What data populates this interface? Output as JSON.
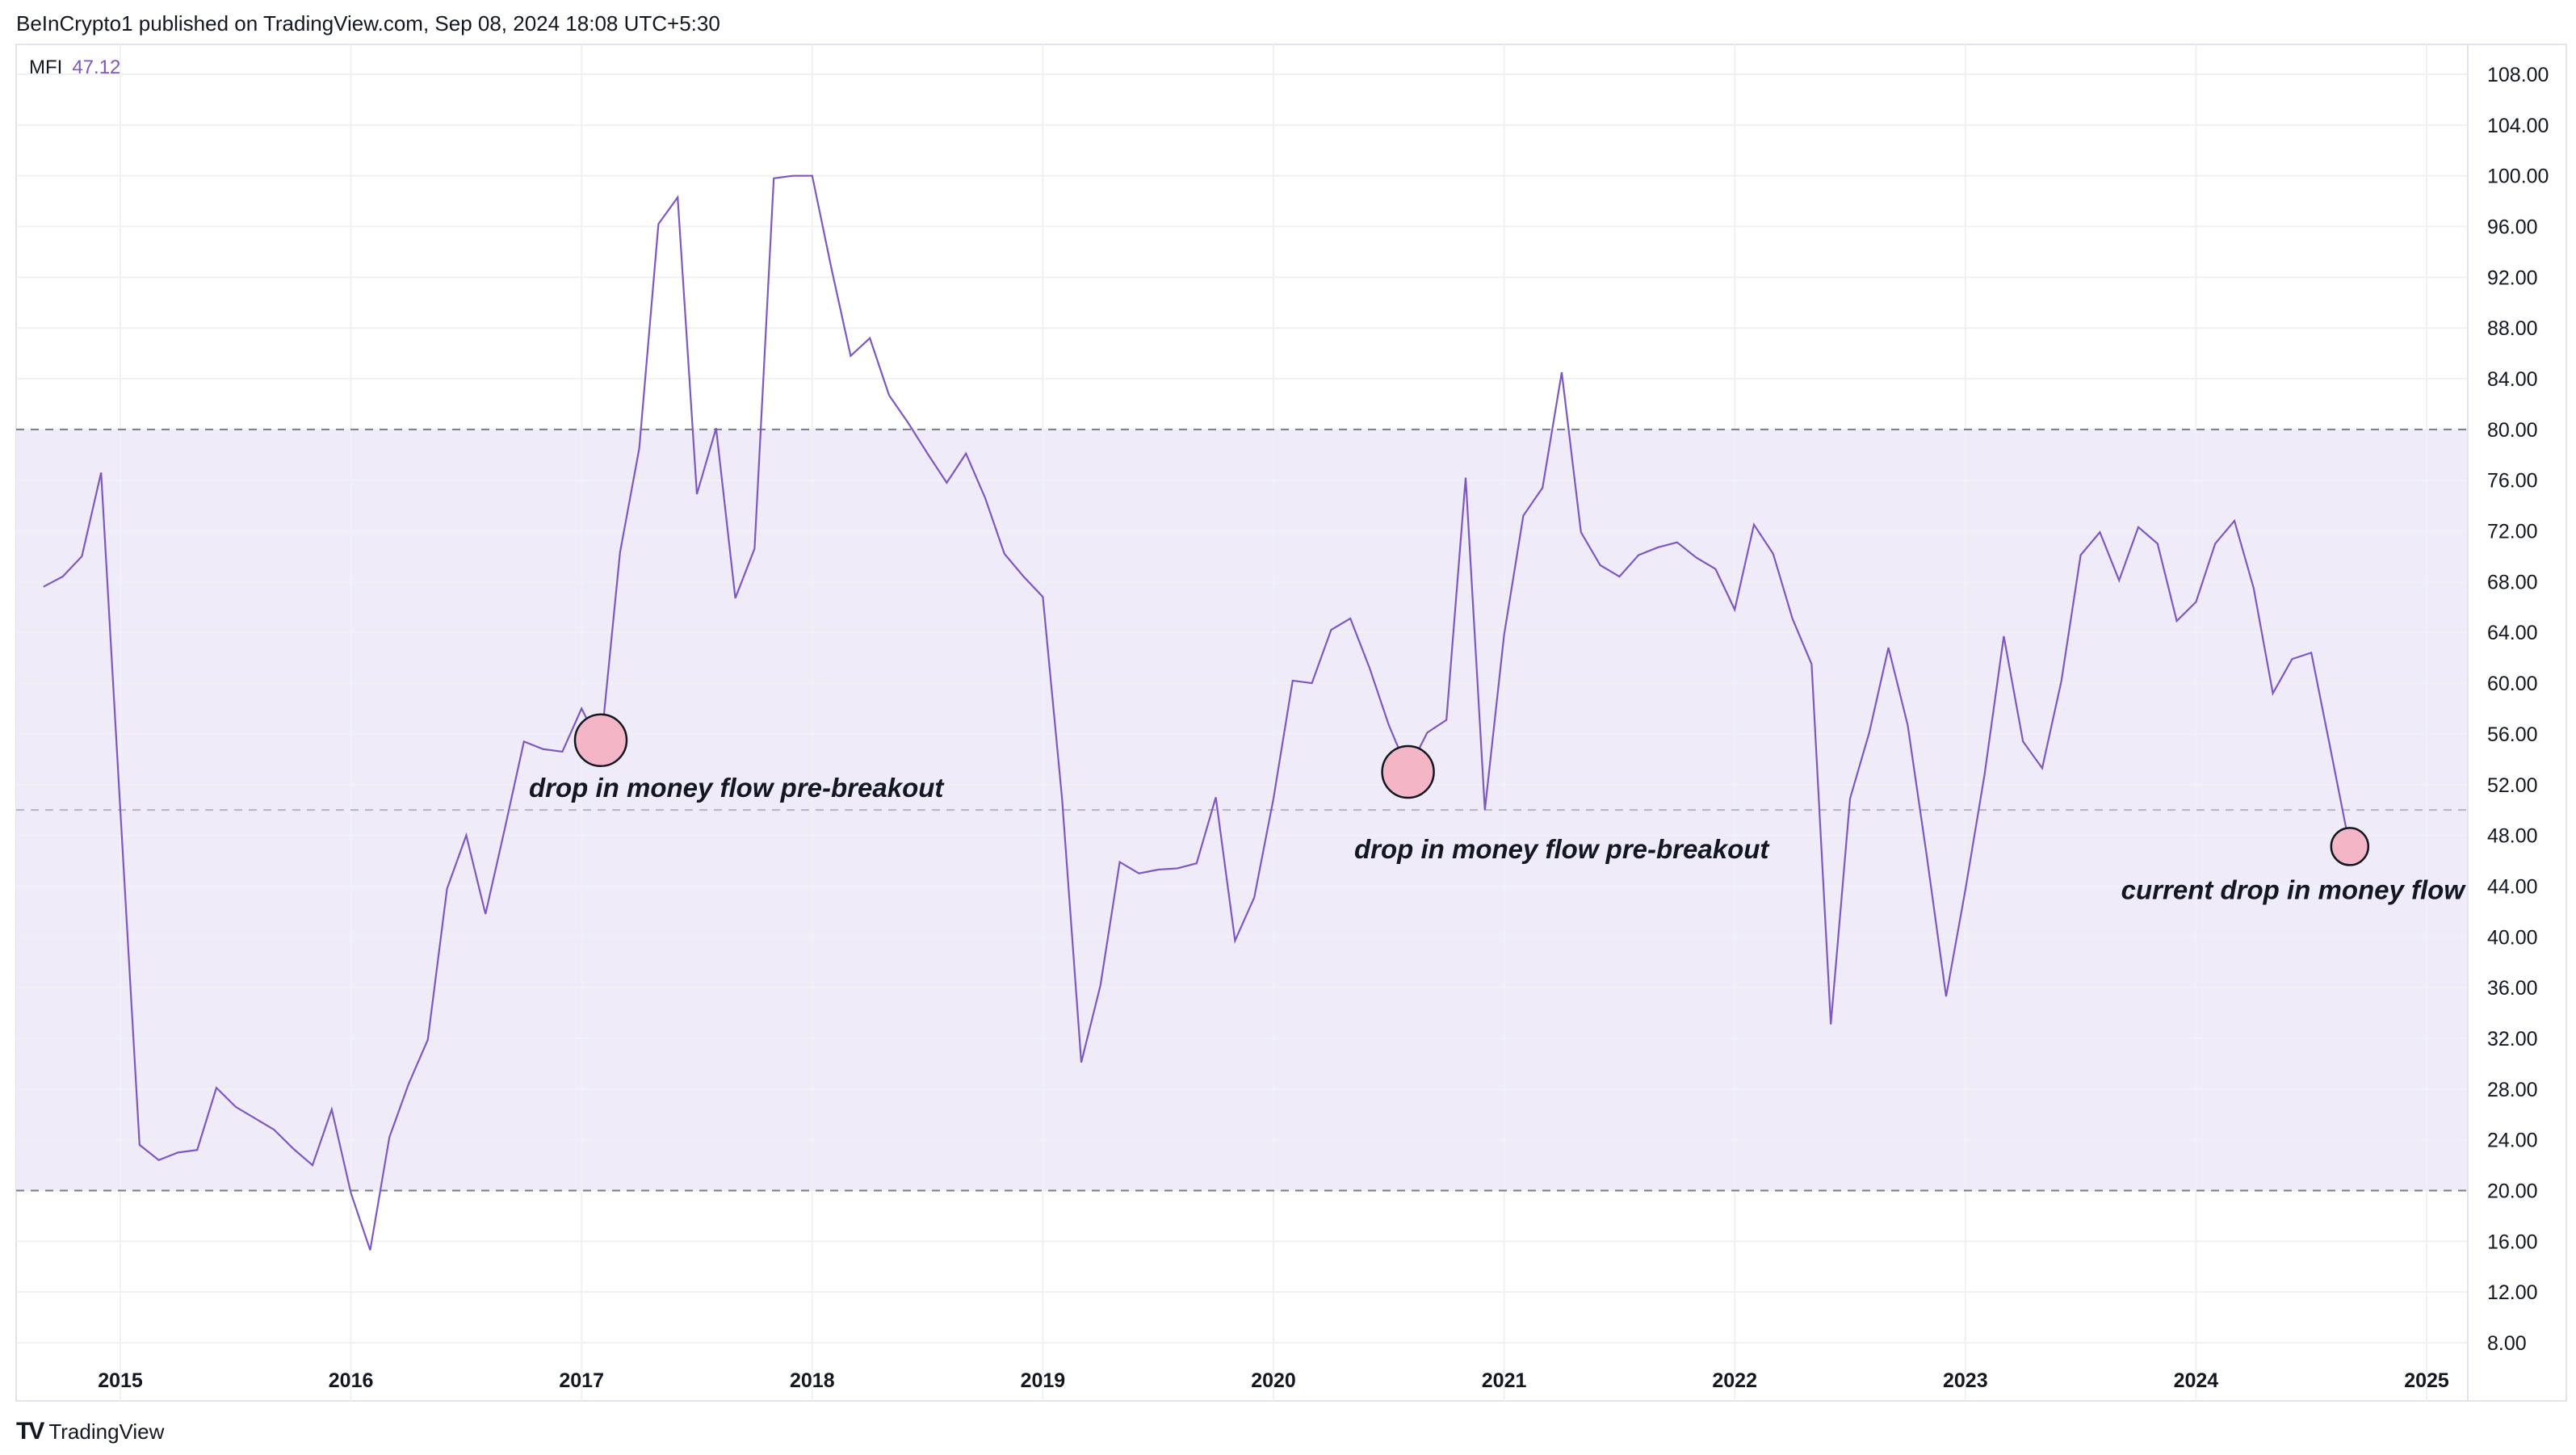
{
  "header": {
    "published": "BeInCrypto1 published on TradingView.com, Sep 08, 2024 18:08 UTC+5:30"
  },
  "legend": {
    "indicator": "MFI",
    "value": "47.12"
  },
  "brand": {
    "logo": "TV",
    "name": "TradingView"
  },
  "colors": {
    "line": "#7e57c2",
    "band_fill": "#efebf8",
    "band_line": "#787b86",
    "circle_fill": "#f4b6c6"
  },
  "chart_data": {
    "type": "line",
    "title": "",
    "xlabel": "",
    "ylabel": "",
    "ylim": [
      8,
      108
    ],
    "y_ticks": [
      "108.00",
      "104.00",
      "100.00",
      "96.00",
      "92.00",
      "88.00",
      "84.00",
      "80.00",
      "76.00",
      "72.00",
      "68.00",
      "64.00",
      "60.00",
      "56.00",
      "52.00",
      "48.00",
      "44.00",
      "40.00",
      "36.00",
      "32.00",
      "28.00",
      "24.00",
      "20.00",
      "16.00",
      "12.00",
      "8.00"
    ],
    "x_ticks": [
      "2015",
      "2016",
      "2017",
      "2018",
      "2019",
      "2020",
      "2021",
      "2022",
      "2023",
      "2024",
      "2025"
    ],
    "grid": true,
    "bands": {
      "upper": 80,
      "middle": 50,
      "lower": 20
    },
    "series": [
      {
        "start": "2014-09",
        "frequency": "monthly",
        "values": [
          67.6,
          68.4,
          70,
          76.6,
          50,
          23.6,
          22.4,
          23,
          23.2,
          28.1,
          26.6,
          25.7,
          24.8,
          23.3,
          22,
          26.4,
          19.8,
          15.3,
          24.2,
          28.4,
          31.9,
          43.8,
          48,
          41.8,
          48.5,
          55.4,
          54.8,
          54.6,
          58,
          55,
          70.3,
          78.5,
          96.2,
          98.3,
          74.9,
          80.1,
          66.7,
          70.6,
          99.8,
          100,
          100,
          92.7,
          85.8,
          87.2,
          82.7,
          80.5,
          78.1,
          75.8,
          78.1,
          74.6,
          70.2,
          68.4,
          66.8,
          50.9,
          30.1,
          36.2,
          45.9,
          45,
          45.3,
          45.4,
          45.8,
          51,
          39.7,
          43.1,
          50.9,
          60.2,
          60,
          64.2,
          65.1,
          61.2,
          56.7,
          53.1,
          56.1,
          57.1,
          76.2,
          50,
          63.8,
          73.2,
          75.4,
          84.5,
          71.9,
          69.3,
          68.4,
          70.1,
          70.7,
          71.1,
          69.9,
          69,
          65.8,
          72.5,
          70.2,
          65.1,
          61.5,
          33.1,
          50.9,
          56.1,
          62.8,
          56.7,
          46.3,
          35.3,
          43.7,
          52.8,
          63.7,
          55.4,
          53.3,
          60.2,
          70.1,
          71.9,
          68.1,
          72.3,
          71,
          64.9,
          66.4,
          71,
          72.8,
          67.5,
          59.2,
          61.9,
          62.4,
          54.8,
          47.12
        ]
      }
    ],
    "annotations": [
      {
        "text": "drop in money flow pre-breakout",
        "date": "2017-02",
        "value": 55.5
      },
      {
        "text": "drop in money flow pre-breakout",
        "date": "2020-08",
        "value": 53
      },
      {
        "text": "current drop in money flow",
        "date": "2024-09",
        "value": 47.12
      }
    ]
  }
}
